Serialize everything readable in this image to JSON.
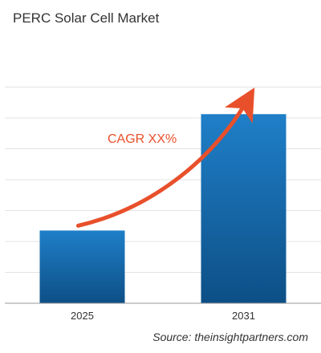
{
  "title": "PERC Solar Cell Market",
  "source": "Source: theinsightpartners.com",
  "chart_data": {
    "type": "bar",
    "categories": [
      "2025",
      "2031"
    ],
    "values": [
      1.0,
      2.6
    ],
    "annotation": "CAGR XX%",
    "ylim": [
      0,
      3.75
    ],
    "y_ticks_labeled": false,
    "grid": true,
    "bar_color_top": "#1f7fc8",
    "bar_color_bottom": "#0d4f86",
    "arrow_color": "#e8502b",
    "annotation_color": "#e8502b"
  }
}
